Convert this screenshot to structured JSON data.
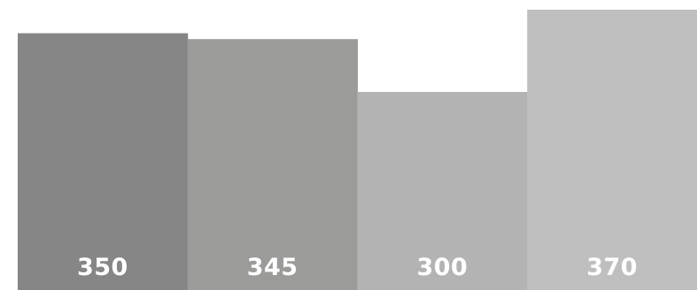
{
  "chart_data": {
    "type": "bar",
    "categories": [
      "",
      "",
      "",
      ""
    ],
    "values": [
      350,
      345,
      300,
      370
    ],
    "data_labels": [
      "350",
      "345",
      "300",
      "370"
    ],
    "colors": [
      "#868686",
      "#9b9b9a",
      "#b3b3b3",
      "#bfbfbf"
    ],
    "ylim": [
      0,
      370
    ],
    "grid": false,
    "title": "",
    "xlabel": "",
    "ylabel": ""
  }
}
